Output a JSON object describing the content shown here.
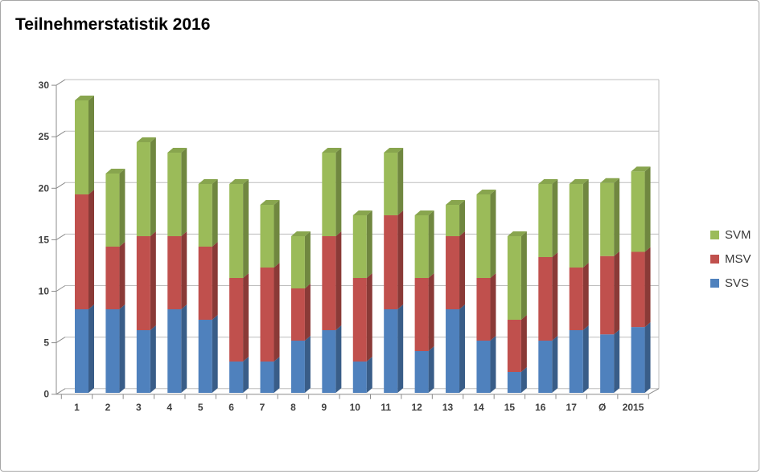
{
  "frame": {
    "background": "#ffffff",
    "border_color": "#a6a6a6"
  },
  "chart_data": {
    "type": "bar",
    "stacked": true,
    "effect": "3d-extruded",
    "title": "Teilnehmerstatistik 2016",
    "categories": [
      "1",
      "2",
      "3",
      "4",
      "5",
      "6",
      "7",
      "8",
      "9",
      "10",
      "11",
      "12",
      "13",
      "14",
      "15",
      "16",
      "17",
      "Ø",
      "2015"
    ],
    "series": [
      {
        "name": "SVS",
        "color": "#4f81bd",
        "values": [
          8,
          8,
          6,
          8,
          7,
          3,
          3,
          5,
          6,
          3,
          8,
          4,
          8,
          5,
          2,
          5,
          6,
          5.6,
          6.3
        ]
      },
      {
        "name": "MSV",
        "color": "#c0504d",
        "values": [
          11,
          6,
          9,
          7,
          7,
          8,
          9,
          5,
          9,
          8,
          9,
          7,
          7,
          6,
          5,
          8,
          6,
          7.5,
          7.2
        ]
      },
      {
        "name": "SVM",
        "color": "#9bbb59",
        "values": [
          9,
          7,
          9,
          8,
          6,
          9,
          6,
          5,
          8,
          6,
          6,
          6,
          3,
          8,
          8,
          7,
          8,
          7.0,
          7.7
        ]
      }
    ],
    "totals": [
      28,
      21,
      24,
      23,
      20,
      20,
      18,
      15,
      23,
      17,
      23,
      17,
      18,
      19,
      15,
      20,
      20,
      20.1,
      21.2
    ],
    "legend": {
      "position": "right",
      "entries": [
        "SVM",
        "MSV",
        "SVS"
      ]
    },
    "xlabel": "",
    "ylabel": "",
    "ylim": [
      0,
      30
    ],
    "yticks": [
      0,
      5,
      10,
      15,
      20,
      25,
      30
    ],
    "grid": true,
    "colors": {
      "gridline": "#bdbdbd",
      "axis": "#8c8c8c",
      "tick_text": "#3f3f3f"
    }
  }
}
